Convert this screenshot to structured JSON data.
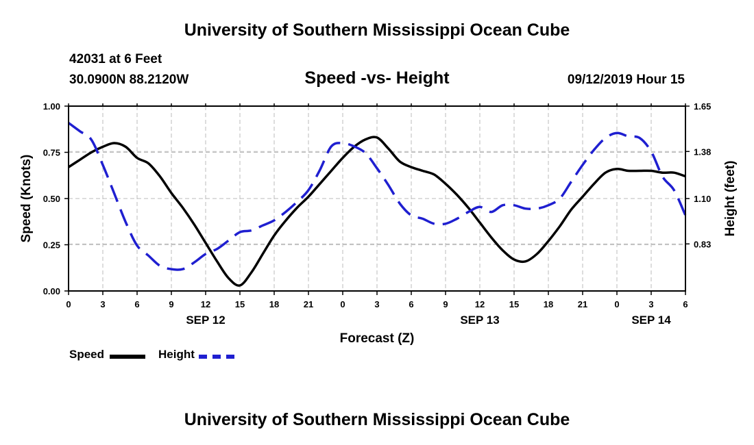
{
  "header": {
    "title": "University of Southern Mississippi Ocean Cube",
    "station": "42031 at 6 Feet",
    "coords": "30.0900N 88.2120W",
    "subtitle": "Speed -vs- Height",
    "date": "09/12/2019 Hour 15"
  },
  "footer": {
    "title": "University of Southern Mississippi Ocean Cube"
  },
  "legend": {
    "speed": "Speed",
    "height": "Height"
  },
  "colors": {
    "speed": "#000000",
    "height": "#1f1fd0",
    "grid": "#bbbbbb"
  },
  "chart_data": {
    "type": "line",
    "title": "Speed -vs- Height",
    "xlabel": "Forecast (Z)",
    "ylabel": "Speed (Knots)",
    "y2label": "Height (feet)",
    "xlim": [
      0,
      54
    ],
    "ylim": [
      0,
      1
    ],
    "y2lim": [
      0.55,
      1.65
    ],
    "x_ticks": [
      0,
      3,
      6,
      9,
      12,
      15,
      18,
      21,
      24,
      27,
      30,
      33,
      36,
      39,
      42,
      45,
      48,
      51,
      54
    ],
    "x_tick_labels": [
      "0",
      "3",
      "6",
      "9",
      "12",
      "15",
      "18",
      "21",
      "0",
      "3",
      "6",
      "9",
      "12",
      "15",
      "18",
      "21",
      "0",
      "3",
      "6"
    ],
    "day_labels": [
      {
        "x": 12,
        "label": "SEP 12"
      },
      {
        "x": 36,
        "label": "SEP 13"
      },
      {
        "x": 51,
        "label": "SEP 14"
      }
    ],
    "y_ticks": [
      0,
      0.25,
      0.5,
      0.75,
      1.0
    ],
    "y_tick_labels": [
      "0.00",
      "0.25",
      "0.50",
      "0.75",
      "1.00"
    ],
    "y2_ticks": [
      0.83,
      1.1,
      1.38,
      1.65
    ],
    "y2_tick_labels": [
      "0.83",
      "1.10",
      "1.38",
      "1.65"
    ],
    "grid": true,
    "series": [
      {
        "name": "Speed",
        "axis": "left",
        "style": "solid",
        "x": [
          0,
          1,
          2,
          3,
          4,
          5,
          6,
          7,
          8,
          9,
          10,
          11,
          12,
          13,
          14,
          15,
          16,
          17,
          18,
          19,
          20,
          21,
          22,
          23,
          24,
          25,
          26,
          27,
          28,
          29,
          30,
          31,
          32,
          33,
          34,
          35,
          36,
          37,
          38,
          39,
          40,
          41,
          42,
          43,
          44,
          45,
          46,
          47,
          48,
          49,
          50,
          51,
          52,
          53,
          54
        ],
        "values": [
          0.67,
          0.71,
          0.75,
          0.78,
          0.8,
          0.78,
          0.72,
          0.69,
          0.62,
          0.53,
          0.45,
          0.36,
          0.26,
          0.16,
          0.07,
          0.03,
          0.1,
          0.2,
          0.3,
          0.38,
          0.45,
          0.51,
          0.58,
          0.65,
          0.72,
          0.78,
          0.82,
          0.83,
          0.77,
          0.7,
          0.67,
          0.65,
          0.63,
          0.58,
          0.52,
          0.45,
          0.37,
          0.29,
          0.22,
          0.17,
          0.16,
          0.2,
          0.27,
          0.35,
          0.44,
          0.51,
          0.58,
          0.64,
          0.66,
          0.65,
          0.65,
          0.65,
          0.64,
          0.64,
          0.62
        ]
      },
      {
        "name": "Height",
        "axis": "right",
        "style": "dashed",
        "x": [
          0,
          1,
          2,
          3,
          4,
          5,
          6,
          7,
          8,
          9,
          10,
          11,
          12,
          13,
          14,
          15,
          16,
          17,
          18,
          19,
          20,
          21,
          22,
          23,
          24,
          25,
          26,
          27,
          28,
          29,
          30,
          31,
          32,
          33,
          34,
          35,
          36,
          37,
          38,
          39,
          40,
          41,
          42,
          43,
          44,
          45,
          46,
          47,
          48,
          49,
          50,
          51,
          52,
          53,
          54
        ],
        "values": [
          1.55,
          1.5,
          1.45,
          1.3,
          1.13,
          0.96,
          0.82,
          0.76,
          0.7,
          0.68,
          0.68,
          0.72,
          0.77,
          0.8,
          0.85,
          0.9,
          0.91,
          0.94,
          0.97,
          1.02,
          1.08,
          1.15,
          1.27,
          1.41,
          1.43,
          1.41,
          1.37,
          1.28,
          1.18,
          1.07,
          1.0,
          0.98,
          0.95,
          0.95,
          0.98,
          1.02,
          1.05,
          1.02,
          1.06,
          1.06,
          1.04,
          1.04,
          1.06,
          1.1,
          1.2,
          1.3,
          1.39,
          1.46,
          1.49,
          1.47,
          1.46,
          1.38,
          1.23,
          1.15,
          1.0
        ]
      }
    ]
  }
}
